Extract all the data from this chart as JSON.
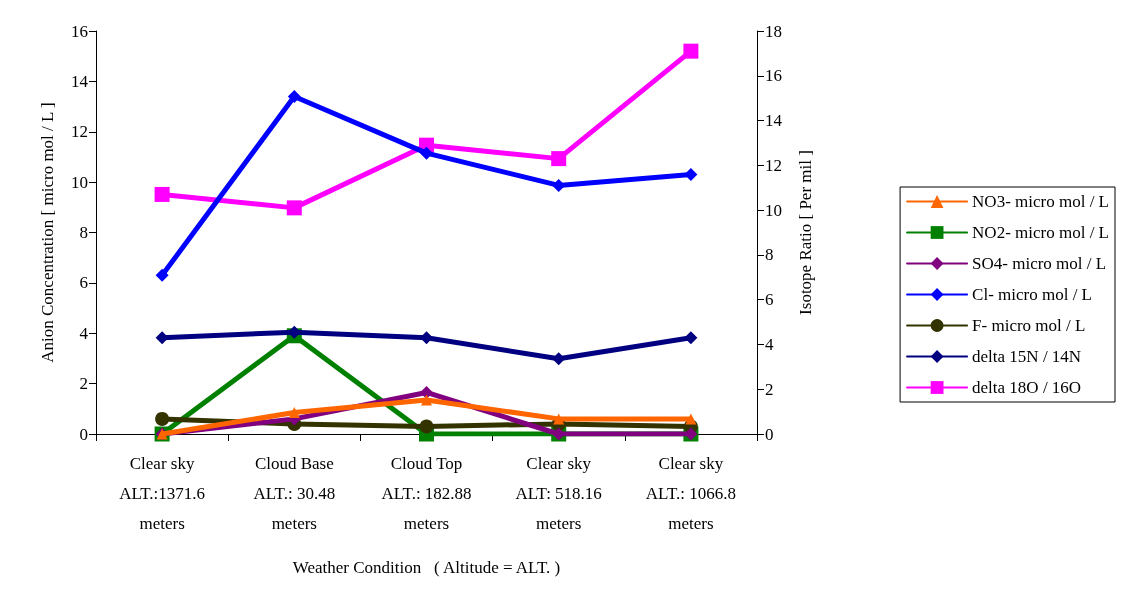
{
  "chart_data": {
    "type": "line",
    "categories": [
      "Clear sky\nALT.:1371.6\nmeters",
      "Cloud Base\nALT.: 30.48\nmeters",
      "Cloud Top\nALT.: 182.88\nmeters",
      "Clear sky\nALT: 518.16\nmeters",
      "Clear sky\nALT.: 1066.8\nmeters"
    ],
    "xlabel": "Weather Condition   ( Altitude = ALT. )",
    "ylabel": "Anion Concentration [ micro mol / L ]",
    "y2label": "Isotope Ratio [ Per mil ]",
    "ylim": [
      0,
      16
    ],
    "yticks": [
      0,
      2,
      4,
      6,
      8,
      10,
      12,
      14,
      16
    ],
    "y2lim": [
      0,
      18
    ],
    "y2ticks": [
      0,
      2,
      4,
      6,
      8,
      10,
      12,
      14,
      16,
      18
    ],
    "grid": false,
    "legend": "right",
    "series": [
      {
        "name": "NO3- micro mol / L",
        "color": "#ff6600",
        "marker": "triangle",
        "values": [
          0,
          0.85,
          1.35,
          0.6,
          0.6
        ]
      },
      {
        "name": "NO2- micro mol / L",
        "color": "#008000",
        "marker": "square",
        "values": [
          0,
          3.9,
          0,
          0,
          0
        ]
      },
      {
        "name": "SO4- micro mol / L",
        "color": "#800080",
        "marker": "diamond",
        "values": [
          0,
          0.6,
          1.65,
          0,
          0
        ]
      },
      {
        "name": "Cl- micro mol / L",
        "color": "#0000ff",
        "marker": "diamond",
        "values": [
          6.3,
          13.4,
          11.15,
          9.87,
          10.3
        ]
      },
      {
        "name": "F- micro mol / L",
        "color": "#333300",
        "marker": "circle",
        "values": [
          0.6,
          0.4,
          0.3,
          0.4,
          0.3
        ]
      },
      {
        "name": "delta 15N / 14N",
        "color": "#000080",
        "marker": "diamond",
        "axis": "y2",
        "values": [
          4.3,
          4.55,
          4.3,
          3.36,
          4.3
        ]
      },
      {
        "name": "delta 18O / 16O",
        "color": "#ff00ff",
        "marker": "square",
        "axis": "y2",
        "values": [
          10.7,
          10.1,
          12.9,
          12.3,
          17.1
        ]
      }
    ]
  }
}
